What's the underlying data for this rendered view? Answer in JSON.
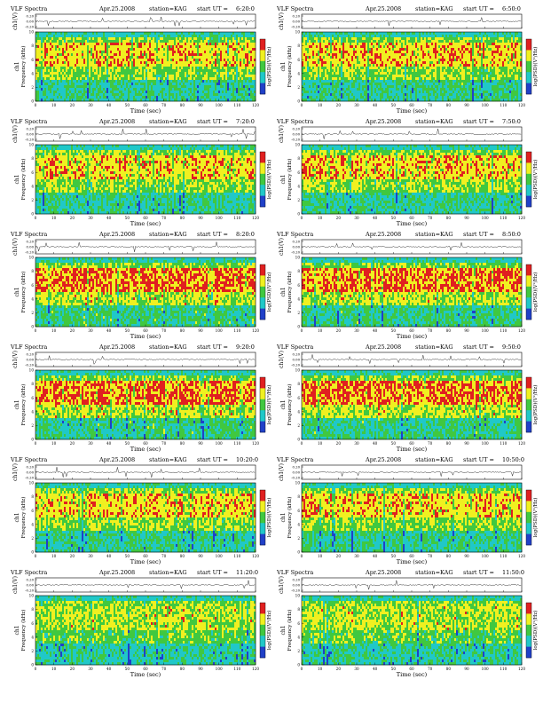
{
  "page": {
    "panel_title": "VLF Spectra",
    "date": "Apr.25.2008",
    "station": "station=KAG",
    "start_prefix": "start  UT =",
    "ch_label": "ch1(V)",
    "freq_label_line1": "ch1",
    "freq_label_line2": "Frequency (kHz)",
    "colorbar_label": "log(PSD)(V²/Hz)",
    "x_axis_label": "Time (sec)",
    "colors": {
      "background": "#ffffff",
      "cold": "#2040c8",
      "cool": "#20c8c8",
      "mid": "#40c840",
      "warm": "#f0f020",
      "hot": "#e02020"
    }
  },
  "chart_data": [
    {
      "type": "heatmap",
      "title": "VLF Spectra",
      "start_ut": "6:20:0",
      "xlabel": "Time (sec)",
      "ylabel": "Frequency (kHz)",
      "xlim": [
        0,
        120
      ],
      "ylim": [
        0,
        10
      ],
      "xticks": [
        0,
        10,
        20,
        30,
        40,
        50,
        60,
        70,
        80,
        90,
        100,
        110,
        120
      ],
      "yticks": [
        0,
        2,
        4,
        6,
        8,
        10
      ],
      "ch_yticks": [
        "0.20",
        "0.00",
        "-0.20"
      ],
      "intensity": "moderate"
    },
    {
      "type": "heatmap",
      "title": "VLF Spectra",
      "start_ut": "6:50:0",
      "xlabel": "Time (sec)",
      "ylabel": "Frequency (kHz)",
      "xlim": [
        0,
        120
      ],
      "ylim": [
        0,
        10
      ],
      "xticks": [
        0,
        10,
        20,
        30,
        40,
        50,
        60,
        70,
        80,
        90,
        100,
        110,
        120
      ],
      "yticks": [
        0,
        2,
        4,
        6,
        8,
        10
      ],
      "ch_yticks": [
        "0.20",
        "0.00",
        "-0.20"
      ],
      "intensity": "moderate"
    },
    {
      "type": "heatmap",
      "title": "VLF Spectra",
      "start_ut": "7:20:0",
      "xlabel": "Time (sec)",
      "ylabel": "Frequency (kHz)",
      "xlim": [
        0,
        120
      ],
      "ylim": [
        0,
        10
      ],
      "xticks": [
        0,
        10,
        20,
        30,
        40,
        50,
        60,
        70,
        80,
        90,
        100,
        110,
        120
      ],
      "yticks": [
        0,
        2,
        4,
        6,
        8,
        10
      ],
      "ch_yticks": [
        "0.20",
        "0.00",
        "-0.20"
      ],
      "intensity": "moderate"
    },
    {
      "type": "heatmap",
      "title": "VLF Spectra",
      "start_ut": "7:50:0",
      "xlabel": "Time (sec)",
      "ylabel": "Frequency (kHz)",
      "xlim": [
        0,
        120
      ],
      "ylim": [
        0,
        10
      ],
      "xticks": [
        0,
        10,
        20,
        30,
        40,
        50,
        60,
        70,
        80,
        90,
        100,
        110,
        120
      ],
      "yticks": [
        0,
        2,
        4,
        6,
        8,
        10
      ],
      "ch_yticks": [
        "0.20",
        "0.00",
        "-0.20"
      ],
      "intensity": "moderate"
    },
    {
      "type": "heatmap",
      "title": "VLF Spectra",
      "start_ut": "8:20:0",
      "xlabel": "Time (sec)",
      "ylabel": "Frequency (kHz)",
      "xlim": [
        0,
        120
      ],
      "ylim": [
        0,
        10
      ],
      "xticks": [
        0,
        10,
        20,
        30,
        40,
        50,
        60,
        70,
        80,
        90,
        100,
        110,
        120
      ],
      "yticks": [
        0,
        2,
        4,
        6,
        8,
        10
      ],
      "ch_yticks": [
        "0.20",
        "0.00",
        "-0.20"
      ],
      "intensity": "strong"
    },
    {
      "type": "heatmap",
      "title": "VLF Spectra",
      "start_ut": "8:50:0",
      "xlabel": "Time (sec)",
      "ylabel": "Frequency (kHz)",
      "xlim": [
        0,
        120
      ],
      "ylim": [
        0,
        10
      ],
      "xticks": [
        0,
        10,
        20,
        30,
        40,
        50,
        60,
        70,
        80,
        90,
        100,
        110,
        120
      ],
      "yticks": [
        0,
        2,
        4,
        6,
        8,
        10
      ],
      "ch_yticks": [
        "0.20",
        "0.00",
        "-0.20"
      ],
      "intensity": "strong"
    },
    {
      "type": "heatmap",
      "title": "VLF Spectra",
      "start_ut": "9:20:0",
      "xlabel": "Time (sec)",
      "ylabel": "Frequency (kHz)",
      "xlim": [
        0,
        120
      ],
      "ylim": [
        0,
        10
      ],
      "xticks": [
        0,
        10,
        20,
        30,
        40,
        50,
        60,
        70,
        80,
        90,
        100,
        110,
        120
      ],
      "yticks": [
        0,
        2,
        4,
        6,
        8,
        10
      ],
      "ch_yticks": [
        "0.20",
        "0.00",
        "-0.20"
      ],
      "intensity": "strong"
    },
    {
      "type": "heatmap",
      "title": "VLF Spectra",
      "start_ut": "9:50:0",
      "xlabel": "Time (sec)",
      "ylabel": "Frequency (kHz)",
      "xlim": [
        0,
        120
      ],
      "ylim": [
        0,
        10
      ],
      "xticks": [
        0,
        10,
        20,
        30,
        40,
        50,
        60,
        70,
        80,
        90,
        100,
        110,
        120
      ],
      "yticks": [
        0,
        2,
        4,
        6,
        8,
        10
      ],
      "ch_yticks": [
        "0.20",
        "0.00",
        "-0.20"
      ],
      "intensity": "strong"
    },
    {
      "type": "heatmap",
      "title": "VLF Spectra",
      "start_ut": "10:20:0",
      "xlabel": "Time (sec)",
      "ylabel": "Frequency (kHz)",
      "xlim": [
        0,
        120
      ],
      "ylim": [
        0,
        10
      ],
      "xticks": [
        0,
        10,
        20,
        30,
        40,
        50,
        60,
        70,
        80,
        90,
        100,
        110,
        120
      ],
      "yticks": [
        0,
        2,
        4,
        6,
        8,
        10
      ],
      "ch_yticks": [
        "0.20",
        "0.00",
        "-0.20"
      ],
      "intensity": "moderate"
    },
    {
      "type": "heatmap",
      "title": "VLF Spectra",
      "start_ut": "10:50:0",
      "xlabel": "Time (sec)",
      "ylabel": "Frequency (kHz)",
      "xlim": [
        0,
        120
      ],
      "ylim": [
        0,
        10
      ],
      "xticks": [
        0,
        10,
        20,
        30,
        40,
        50,
        60,
        70,
        80,
        90,
        100,
        110,
        120
      ],
      "yticks": [
        0,
        2,
        4,
        6,
        8,
        10
      ],
      "ch_yticks": [
        "0.20",
        "0.00",
        "-0.20"
      ],
      "intensity": "moderate"
    },
    {
      "type": "heatmap",
      "title": "VLF Spectra",
      "start_ut": "11:20:0",
      "xlabel": "Time (sec)",
      "ylabel": "Frequency (kHz)",
      "xlim": [
        0,
        120
      ],
      "ylim": [
        0,
        10
      ],
      "xticks": [
        0,
        10,
        20,
        30,
        40,
        50,
        60,
        70,
        80,
        90,
        100,
        110,
        120
      ],
      "yticks": [
        0,
        2,
        4,
        6,
        8,
        10
      ],
      "ch_yticks": [
        "0.20",
        "0.00",
        "-0.20"
      ],
      "intensity": "weak"
    },
    {
      "type": "heatmap",
      "title": "VLF Spectra",
      "start_ut": "11:50:0",
      "xlabel": "Time (sec)",
      "ylabel": "Frequency (kHz)",
      "xlim": [
        0,
        120
      ],
      "ylim": [
        0,
        10
      ],
      "xticks": [
        0,
        10,
        20,
        30,
        40,
        50,
        60,
        70,
        80,
        90,
        100,
        110,
        120
      ],
      "yticks": [
        0,
        2,
        4,
        6,
        8,
        10
      ],
      "ch_yticks": [
        "0.20",
        "0.00",
        "-0.20"
      ],
      "intensity": "weak"
    }
  ]
}
